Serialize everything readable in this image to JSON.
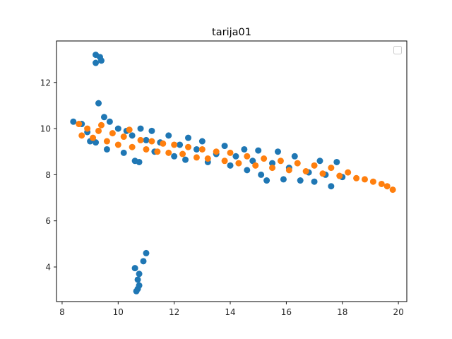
{
  "chart_data": {
    "type": "scatter",
    "title": "tarija01",
    "xlabel": "",
    "ylabel": "",
    "xlim": [
      7.8,
      20.3
    ],
    "ylim": [
      2.5,
      13.8
    ],
    "xticks": [
      8,
      10,
      12,
      14,
      16,
      18,
      20
    ],
    "yticks": [
      4,
      6,
      8,
      10,
      12
    ],
    "grid": false,
    "legend": {
      "placement": "top-right",
      "entries": []
    },
    "colors": {
      "series_1": "#1f77b4",
      "series_2": "#ff7f0e",
      "axes": "#000000"
    },
    "series": [
      {
        "color": "#1f77b4",
        "points": [
          [
            9.2,
            13.2
          ],
          [
            9.35,
            13.1
          ],
          [
            9.2,
            12.85
          ],
          [
            9.4,
            12.95
          ],
          [
            9.3,
            11.1
          ],
          [
            11.0,
            4.6
          ],
          [
            10.9,
            4.25
          ],
          [
            10.6,
            3.95
          ],
          [
            10.75,
            3.7
          ],
          [
            10.7,
            3.45
          ],
          [
            10.75,
            3.2
          ],
          [
            10.7,
            3.05
          ],
          [
            10.65,
            2.95
          ],
          [
            8.4,
            10.3
          ],
          [
            8.7,
            10.2
          ],
          [
            8.9,
            9.85
          ],
          [
            9.0,
            9.45
          ],
          [
            9.2,
            9.4
          ],
          [
            9.5,
            10.5
          ],
          [
            9.7,
            10.3
          ],
          [
            9.6,
            9.1
          ],
          [
            10.0,
            10.0
          ],
          [
            10.3,
            9.9
          ],
          [
            10.2,
            8.95
          ],
          [
            10.5,
            9.7
          ],
          [
            10.8,
            10.0
          ],
          [
            10.6,
            8.6
          ],
          [
            10.75,
            8.55
          ],
          [
            11.0,
            9.5
          ],
          [
            11.2,
            9.9
          ],
          [
            11.3,
            9.0
          ],
          [
            11.5,
            9.4
          ],
          [
            11.8,
            9.7
          ],
          [
            12.0,
            8.8
          ],
          [
            12.2,
            9.3
          ],
          [
            12.5,
            9.6
          ],
          [
            12.4,
            8.65
          ],
          [
            12.8,
            9.1
          ],
          [
            13.0,
            9.45
          ],
          [
            13.2,
            8.55
          ],
          [
            13.5,
            8.9
          ],
          [
            13.8,
            9.25
          ],
          [
            14.0,
            8.4
          ],
          [
            14.2,
            8.8
          ],
          [
            14.5,
            9.1
          ],
          [
            14.6,
            8.2
          ],
          [
            14.8,
            8.6
          ],
          [
            15.0,
            9.05
          ],
          [
            15.1,
            8.0
          ],
          [
            15.3,
            7.75
          ],
          [
            15.5,
            8.5
          ],
          [
            15.7,
            9.0
          ],
          [
            15.9,
            7.8
          ],
          [
            16.1,
            8.3
          ],
          [
            16.3,
            8.8
          ],
          [
            16.5,
            7.75
          ],
          [
            16.8,
            8.1
          ],
          [
            17.0,
            7.7
          ],
          [
            17.2,
            8.6
          ],
          [
            17.4,
            8.0
          ],
          [
            17.6,
            7.5
          ],
          [
            17.8,
            8.55
          ],
          [
            18.0,
            7.9
          ]
        ]
      },
      {
        "color": "#ff7f0e",
        "points": [
          [
            8.6,
            10.2
          ],
          [
            8.7,
            9.7
          ],
          [
            8.9,
            10.0
          ],
          [
            9.1,
            9.6
          ],
          [
            9.3,
            9.9
          ],
          [
            9.4,
            10.15
          ],
          [
            9.6,
            9.45
          ],
          [
            9.8,
            9.8
          ],
          [
            10.0,
            9.3
          ],
          [
            10.2,
            9.65
          ],
          [
            10.4,
            9.95
          ],
          [
            10.5,
            9.2
          ],
          [
            10.8,
            9.5
          ],
          [
            11.0,
            9.1
          ],
          [
            11.2,
            9.45
          ],
          [
            11.4,
            9.0
          ],
          [
            11.6,
            9.35
          ],
          [
            11.8,
            8.95
          ],
          [
            12.0,
            9.3
          ],
          [
            12.3,
            8.9
          ],
          [
            12.5,
            9.2
          ],
          [
            12.8,
            8.75
          ],
          [
            13.0,
            9.1
          ],
          [
            13.2,
            8.7
          ],
          [
            13.5,
            9.0
          ],
          [
            13.8,
            8.6
          ],
          [
            14.0,
            8.95
          ],
          [
            14.3,
            8.5
          ],
          [
            14.6,
            8.8
          ],
          [
            14.9,
            8.4
          ],
          [
            15.2,
            8.7
          ],
          [
            15.5,
            8.3
          ],
          [
            15.8,
            8.6
          ],
          [
            16.1,
            8.2
          ],
          [
            16.4,
            8.5
          ],
          [
            16.7,
            8.15
          ],
          [
            17.0,
            8.4
          ],
          [
            17.3,
            8.05
          ],
          [
            17.6,
            8.3
          ],
          [
            17.9,
            7.95
          ],
          [
            18.2,
            8.1
          ],
          [
            18.5,
            7.85
          ],
          [
            18.8,
            7.8
          ],
          [
            19.1,
            7.7
          ],
          [
            19.4,
            7.6
          ],
          [
            19.6,
            7.5
          ],
          [
            19.8,
            7.35
          ]
        ]
      }
    ]
  }
}
